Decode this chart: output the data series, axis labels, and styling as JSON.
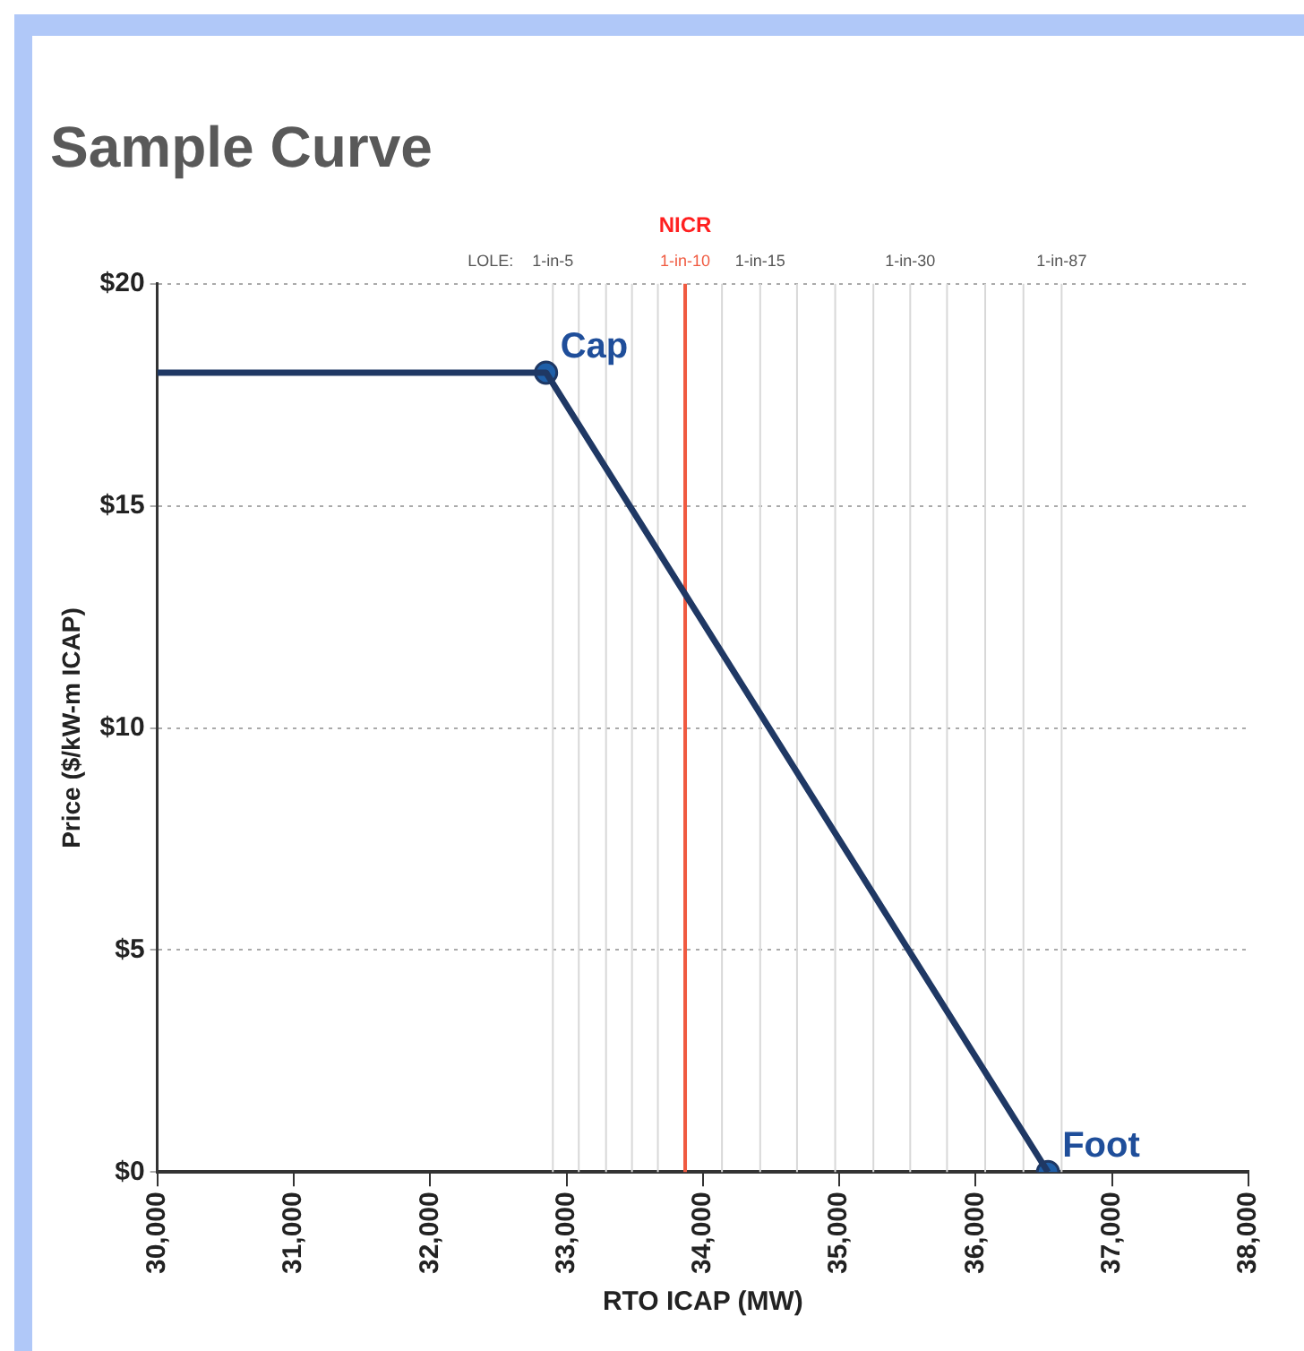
{
  "chart_data": {
    "type": "line",
    "title": "Sample Curve",
    "xlabel": "RTO ICAP (MW)",
    "ylabel": "Price ($/kW-m ICAP)",
    "series": [
      {
        "type": "line",
        "color": "#1f3864",
        "x": [
          30000,
          32850,
          36530
        ],
        "values": [
          18,
          18,
          0
        ],
        "marker": "none"
      },
      {
        "type": "scatter",
        "color": "#1f5fa8",
        "x": [
          32850,
          36530
        ],
        "values": [
          18,
          0
        ],
        "marker": "circle"
      }
    ],
    "xlim": [
      30000,
      38000
    ],
    "ylim": [
      0,
      20
    ],
    "xticks": [
      {
        "value": 30000,
        "label": "30,000"
      },
      {
        "value": 31000,
        "label": "31,000"
      },
      {
        "value": 32000,
        "label": "32,000"
      },
      {
        "value": 33000,
        "label": "33,000"
      },
      {
        "value": 34000,
        "label": "34,000"
      },
      {
        "value": 35000,
        "label": "35,000"
      },
      {
        "value": 36000,
        "label": "36,000"
      },
      {
        "value": 37000,
        "label": "37,000"
      },
      {
        "value": 38000,
        "label": "38,000"
      }
    ],
    "yticks": [
      {
        "value": 0,
        "label": "$0"
      },
      {
        "value": 5,
        "label": "$5"
      },
      {
        "value": 10,
        "label": "$10"
      },
      {
        "value": 15,
        "label": "$15"
      },
      {
        "value": 20,
        "label": "$20"
      }
    ],
    "grid": "y",
    "legend": false,
    "ref_lines": [
      {
        "axis": "x",
        "value": 32900,
        "label": "1-in-5",
        "color": "#d8d8d8"
      },
      {
        "axis": "x",
        "value": 33090,
        "label": null,
        "color": "#d8d8d8"
      },
      {
        "axis": "x",
        "value": 33290,
        "label": null,
        "color": "#d8d8d8"
      },
      {
        "axis": "x",
        "value": 33480,
        "label": null,
        "color": "#d8d8d8"
      },
      {
        "axis": "x",
        "value": 33670,
        "label": null,
        "color": "#d8d8d8"
      },
      {
        "axis": "x",
        "value": 33870,
        "label": "1-in-10",
        "color": "#f05a40"
      },
      {
        "axis": "x",
        "value": 34140,
        "label": null,
        "color": "#d8d8d8"
      },
      {
        "axis": "x",
        "value": 34420,
        "label": "1-in-15",
        "color": "#d8d8d8"
      },
      {
        "axis": "x",
        "value": 34690,
        "label": null,
        "color": "#d8d8d8"
      },
      {
        "axis": "x",
        "value": 34970,
        "label": null,
        "color": "#d8d8d8"
      },
      {
        "axis": "x",
        "value": 35250,
        "label": null,
        "color": "#d8d8d8"
      },
      {
        "axis": "x",
        "value": 35520,
        "label": "1-in-30",
        "color": "#d8d8d8"
      },
      {
        "axis": "x",
        "value": 35790,
        "label": null,
        "color": "#d8d8d8"
      },
      {
        "axis": "x",
        "value": 36070,
        "label": null,
        "color": "#d8d8d8"
      },
      {
        "axis": "x",
        "value": 36350,
        "label": null,
        "color": "#d8d8d8"
      },
      {
        "axis": "x",
        "value": 36630,
        "label": "1-in-87",
        "color": "#d8d8d8"
      }
    ],
    "annotations": [
      "LOLE:",
      "NICR",
      {
        "text": "Cap",
        "x": 32850,
        "y": 18
      },
      {
        "text": "Foot",
        "x": 36530,
        "y": 0
      }
    ]
  }
}
